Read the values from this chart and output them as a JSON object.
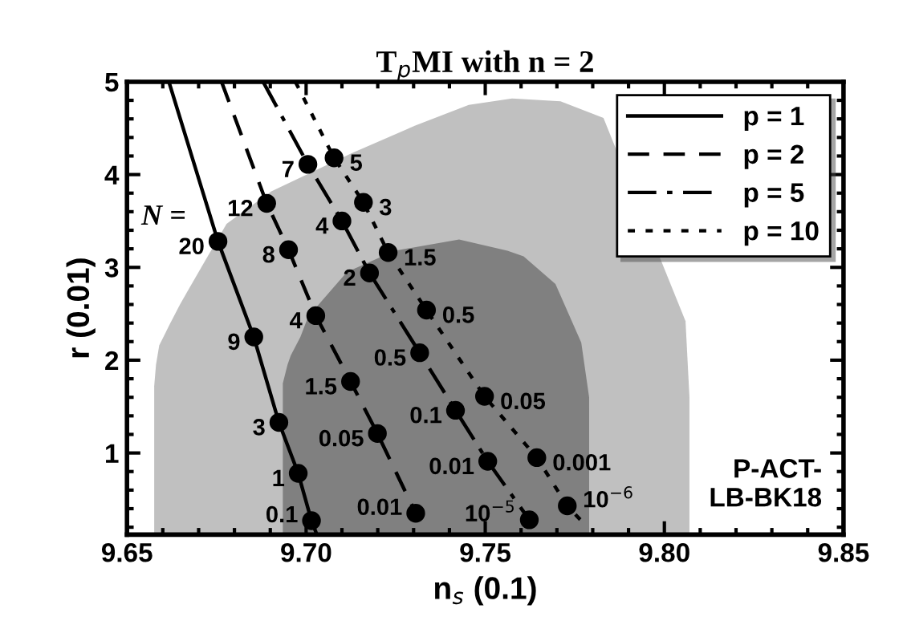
{
  "chart_data": {
    "type": "line",
    "title": "T$_{p}$MI with n = 2",
    "xlabel": "n$_{s}$ (0.1)",
    "ylabel": "r (0.01)",
    "xlim": [
      9.65,
      9.85
    ],
    "xticks": [
      {
        "value": 9.65,
        "label": "9.65"
      },
      {
        "value": 9.7,
        "label": "9.70"
      },
      {
        "value": 9.75,
        "label": "9.75"
      },
      {
        "value": 9.8,
        "label": "9.80"
      },
      {
        "value": 9.85,
        "label": "9.85"
      }
    ],
    "ylim": [
      0.12,
      5
    ],
    "yticks": [
      1,
      2,
      3,
      4,
      5
    ],
    "grid": false,
    "legend": "top right",
    "annotations": [
      "N =",
      "P-ACT-\nLB-BK18",
      {
        "text": "20",
        "x": 9.6754,
        "y": 3.28
      },
      {
        "text": "9",
        "x": 9.6854,
        "y": 2.25
      },
      {
        "text": "3",
        "x": 9.6924,
        "y": 1.33
      },
      {
        "text": "1",
        "x": 9.6978,
        "y": 0.78
      },
      {
        "text": "0.1",
        "x": 9.7015,
        "y": 0.27
      },
      {
        "text": "12",
        "x": 9.689,
        "y": 3.69
      },
      {
        "text": "8",
        "x": 9.6951,
        "y": 3.19
      },
      {
        "text": "4",
        "x": 9.7027,
        "y": 2.48
      },
      {
        "text": "1.5",
        "x": 9.7124,
        "y": 1.77
      },
      {
        "text": "0.05",
        "x": 9.7199,
        "y": 1.21
      },
      {
        "text": "0.01",
        "x": 9.7306,
        "y": 0.35
      },
      {
        "text": "7",
        "x": 9.7005,
        "y": 4.11
      },
      {
        "text": "4",
        "x": 9.71,
        "y": 3.5
      },
      {
        "text": "2",
        "x": 9.7177,
        "y": 2.94
      },
      {
        "text": "0.5",
        "x": 9.7317,
        "y": 2.08
      },
      {
        "text": "0.1",
        "x": 9.7417,
        "y": 1.46
      },
      {
        "text": "0.01",
        "x": 9.7507,
        "y": 0.91
      },
      {
        "text": "10$^{−5}$",
        "x": 9.7623,
        "y": 0.28
      },
      {
        "text": "5",
        "x": 9.7078,
        "y": 4.18
      },
      {
        "text": "3",
        "x": 9.716,
        "y": 3.7
      },
      {
        "text": "1.5",
        "x": 9.7229,
        "y": 3.16
      },
      {
        "text": "0.5",
        "x": 9.7336,
        "y": 2.54
      },
      {
        "text": "0.05",
        "x": 9.7498,
        "y": 1.61
      },
      {
        "text": "0.001",
        "x": 9.7644,
        "y": 0.95
      },
      {
        "text": "10$^{−6}$",
        "x": 9.7729,
        "y": 0.43
      }
    ],
    "series": [
      {
        "type": "area",
        "color": "#c0c0c0",
        "x": [
          9.6576,
          9.6581,
          9.659,
          9.6621,
          9.6648,
          9.667,
          9.6778,
          9.6903,
          9.7127,
          9.7306,
          9.7454,
          9.7575,
          9.771,
          9.783,
          9.8059,
          9.807
        ],
        "values": [
          1.72,
          1.95,
          2.16,
          2.4,
          2.6,
          2.75,
          3.47,
          3.82,
          4.23,
          4.53,
          4.75,
          4.82,
          4.79,
          4.61,
          2.42,
          1.6
        ]
      },
      {
        "type": "area",
        "color": "#808080",
        "x": [
          9.6935,
          9.6948,
          9.6957,
          9.6984,
          9.7006,
          9.7114,
          9.7248,
          9.7427,
          9.7562,
          9.7607,
          9.7696,
          9.7768,
          9.779
        ],
        "values": [
          1.75,
          1.95,
          2.05,
          2.25,
          2.47,
          2.95,
          3.18,
          3.3,
          3.18,
          3.12,
          2.82,
          2.19,
          1.6
        ]
      },
      {
        "name": "p = 1",
        "color": "#000000",
        "line_style": "solid",
        "marker": "none",
        "x": [
          9.6617,
          9.6754,
          9.6854,
          9.6924,
          9.6978,
          9.7015,
          9.703
        ],
        "values": [
          5,
          3.28,
          2.25,
          1.33,
          0.78,
          0.27,
          0.12
        ]
      },
      {
        "name": "p = 2",
        "color": "#000000",
        "line_style": "dashed",
        "marker": "none",
        "x": [
          9.6764,
          9.689,
          9.6951,
          9.7027,
          9.7124,
          9.7199,
          9.7306
        ],
        "values": [
          5,
          3.69,
          3.19,
          2.48,
          1.77,
          1.21,
          0.35
        ]
      },
      {
        "name": "p = 5",
        "color": "#000000",
        "line_style": "dashdot",
        "marker": "none",
        "x": [
          9.688,
          9.7005,
          9.71,
          9.7177,
          9.7317,
          9.7417,
          9.7507,
          9.7623
        ],
        "values": [
          5,
          4.11,
          3.5,
          2.94,
          2.08,
          1.46,
          0.91,
          0.28
        ]
      },
      {
        "name": "p = 10",
        "color": "#000000",
        "line_style": "dotted",
        "marker": "none",
        "x": [
          9.697,
          9.7078,
          9.716,
          9.7229,
          9.7336,
          9.7498,
          9.7644,
          9.7729,
          9.7778
        ],
        "values": [
          5,
          4.18,
          3.7,
          3.16,
          2.54,
          1.61,
          0.95,
          0.43,
          0.23
        ]
      },
      {
        "type": "scatter",
        "color": "#000000",
        "marker": "circle",
        "x": [
          9.6754,
          9.6854,
          9.6924,
          9.6978,
          9.7015
        ],
        "values": [
          3.28,
          2.25,
          1.33,
          0.78,
          0.27
        ]
      },
      {
        "type": "scatter",
        "color": "#000000",
        "marker": "circle",
        "x": [
          9.689,
          9.6951,
          9.7027,
          9.7124,
          9.7199,
          9.7306
        ],
        "values": [
          3.69,
          3.19,
          2.48,
          1.77,
          1.21,
          0.35
        ]
      },
      {
        "type": "scatter",
        "color": "#000000",
        "marker": "circle",
        "x": [
          9.7005,
          9.71,
          9.7177,
          9.7317,
          9.7417,
          9.7507,
          9.7623
        ],
        "values": [
          4.11,
          3.5,
          2.94,
          2.08,
          1.46,
          0.91,
          0.28
        ]
      },
      {
        "type": "scatter",
        "color": "#000000",
        "marker": "circle",
        "x": [
          9.7078,
          9.716,
          9.7229,
          9.7336,
          9.7498,
          9.7644,
          9.7729
        ],
        "values": [
          4.18,
          3.7,
          3.16,
          2.54,
          1.61,
          0.95,
          0.43
        ]
      }
    ]
  }
}
